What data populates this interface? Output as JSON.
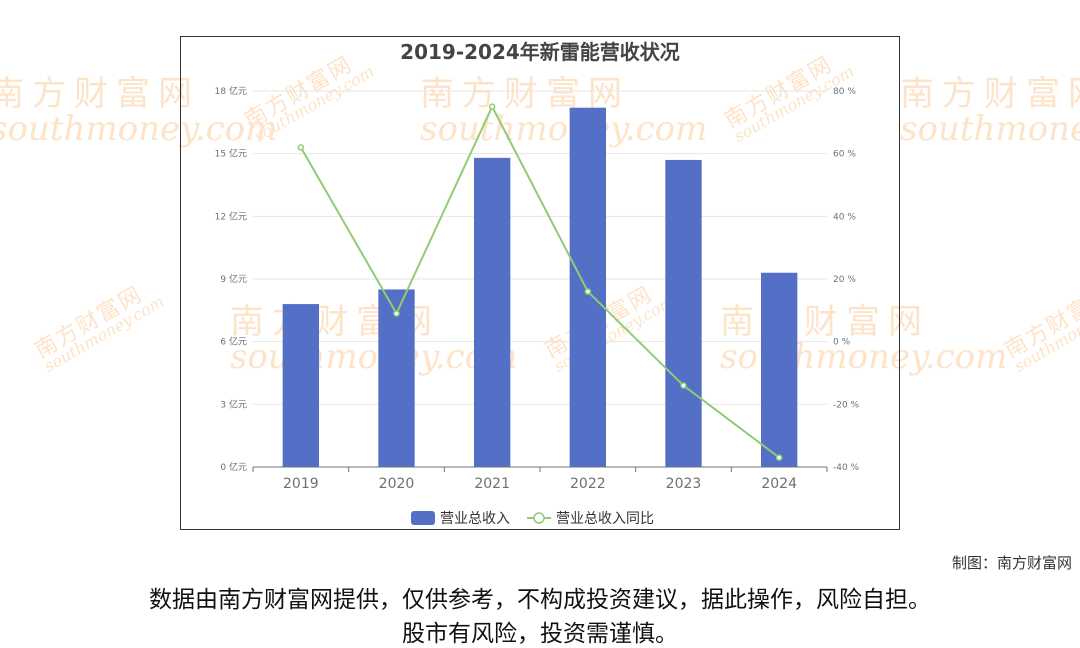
{
  "watermark": {
    "cn": "南方财富网",
    "en": "southmoney.com"
  },
  "chart_data": {
    "type": "bar",
    "title": "2019-2024年新雷能营收状况",
    "categories": [
      "2019",
      "2020",
      "2021",
      "2022",
      "2023",
      "2024"
    ],
    "series": [
      {
        "name": "营业总收入",
        "type": "bar",
        "axis": "left",
        "color": "#5470c6",
        "values": [
          7.8,
          8.5,
          14.8,
          17.2,
          14.7,
          9.3
        ]
      },
      {
        "name": "营业总收入同比",
        "type": "line",
        "axis": "right",
        "color": "#91cc75",
        "values": [
          62,
          9,
          75,
          16,
          -14,
          -37
        ]
      }
    ],
    "y_left": {
      "ticks": [
        "0 亿元",
        "3 亿元",
        "6 亿元",
        "9 亿元",
        "12 亿元",
        "15 亿元",
        "18 亿元"
      ],
      "min": 0,
      "max": 18
    },
    "y_right": {
      "ticks": [
        "-40 %",
        "-20 %",
        "0 %",
        "20 %",
        "40 %",
        "60 %",
        "80 %"
      ],
      "min": -40,
      "max": 80
    },
    "grid": true,
    "legend_position": "bottom"
  },
  "footer": {
    "maker": "制图：南方财富网",
    "disclaimer_line1": "数据由南方财富网提供，仅供参考，不构成投资建议，据此操作，风险自担。",
    "disclaimer_line2": "股市有风险，投资需谨慎。"
  }
}
